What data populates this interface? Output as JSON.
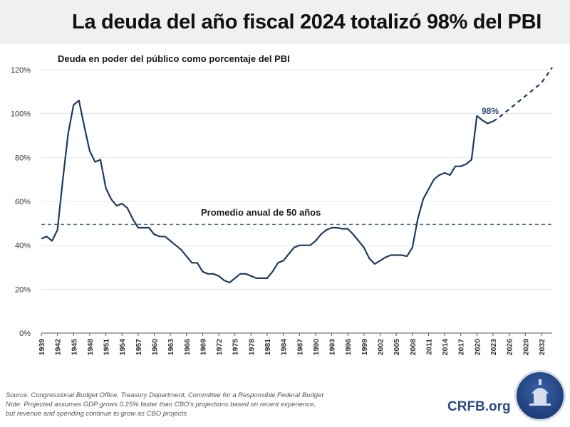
{
  "title": "La deuda del año fiscal 2024 totalizó 98% del PBI",
  "subtitle": "Deuda en poder del público como porcentaje del PBI",
  "average_label": "Promedio anual de 50 años",
  "end_label": "98%",
  "footer": {
    "source": "Source: Congressional Budget Office, Treasury Department, Committee for a Responsible Federal Budget",
    "note_line1": "Note: Projected assumes GDP grows 0.25% faster than CBO's projections based on recent experience,",
    "note_line2": "but revenue and spending continue to grow as CBO projects",
    "brand": "CRFB.org"
  },
  "colors": {
    "line": "#1f3a5f",
    "average": "#5a6e86",
    "grid": "#e3e3e3",
    "title_band": "#f0f0f0"
  },
  "chart_data": {
    "type": "line",
    "title": "La deuda del año fiscal 2024 totalizó 98% del PBI",
    "subtitle": "Deuda en poder del público como porcentaje del PBI",
    "xlim": [
      1939,
      2034
    ],
    "ylim": [
      0,
      120
    ],
    "y_ticks": [
      0,
      20,
      40,
      60,
      80,
      100,
      120
    ],
    "y_tick_labels": [
      "0%",
      "20%",
      "40%",
      "60%",
      "80%",
      "100%",
      "120%"
    ],
    "x_ticks": [
      1939,
      1942,
      1945,
      1948,
      1951,
      1954,
      1957,
      1960,
      1963,
      1966,
      1969,
      1972,
      1975,
      1978,
      1981,
      1984,
      1987,
      1990,
      1993,
      1996,
      1999,
      2002,
      2005,
      2008,
      2011,
      2014,
      2017,
      2020,
      2023,
      2026,
      2029,
      2032
    ],
    "grid": "horizontal",
    "series": [
      {
        "style": "solid",
        "x": [
          1939,
          1940,
          1941,
          1942,
          1943,
          1944,
          1945,
          1946,
          1947,
          1948,
          1949,
          1950,
          1951,
          1952,
          1953,
          1954,
          1955,
          1956,
          1957,
          1958,
          1959,
          1960,
          1961,
          1962,
          1963,
          1964,
          1965,
          1966,
          1967,
          1968,
          1969,
          1970,
          1971,
          1972,
          1973,
          1974,
          1975,
          1976,
          1977,
          1978,
          1979,
          1980,
          1981,
          1982,
          1983,
          1984,
          1985,
          1986,
          1987,
          1988,
          1989,
          1990,
          1991,
          1992,
          1993,
          1994,
          1995,
          1996,
          1997,
          1998,
          1999,
          2000,
          2001,
          2002,
          2003,
          2004,
          2005,
          2006,
          2007,
          2008,
          2009,
          2010,
          2011,
          2012,
          2013,
          2014,
          2015,
          2016,
          2017,
          2018,
          2019,
          2020,
          2021,
          2022,
          2023
        ],
        "values": [
          43,
          44,
          42,
          47,
          70,
          91,
          104,
          106,
          94,
          83,
          78,
          79,
          66,
          61,
          58,
          59,
          57,
          52,
          48,
          48,
          48,
          45,
          44,
          44,
          42,
          40,
          38,
          35,
          32,
          32,
          28,
          27,
          27,
          26,
          24,
          23,
          25,
          27,
          27,
          26,
          25,
          25,
          25,
          28,
          32,
          33,
          36,
          39,
          40,
          40,
          40,
          42,
          45,
          47,
          48,
          48,
          47.5,
          47.5,
          45,
          42,
          39,
          34,
          31.5,
          33,
          34.5,
          35.5,
          35.5,
          35.5,
          35,
          39,
          52,
          61,
          65.5,
          70,
          72,
          73,
          72,
          76,
          76,
          77,
          79,
          99,
          97,
          95.5,
          96.5
        ]
      },
      {
        "style": "dashed",
        "x": [
          2023,
          2024,
          2026,
          2029,
          2032,
          2034
        ],
        "values": [
          96.5,
          98,
          102,
          108,
          114,
          121
        ]
      }
    ],
    "reference_lines": [
      {
        "label": "Promedio anual de 50 años",
        "value": 49.5,
        "style": "dashed"
      }
    ],
    "annotations": [
      {
        "text": "98%",
        "x": 2024,
        "y": 98
      }
    ]
  }
}
